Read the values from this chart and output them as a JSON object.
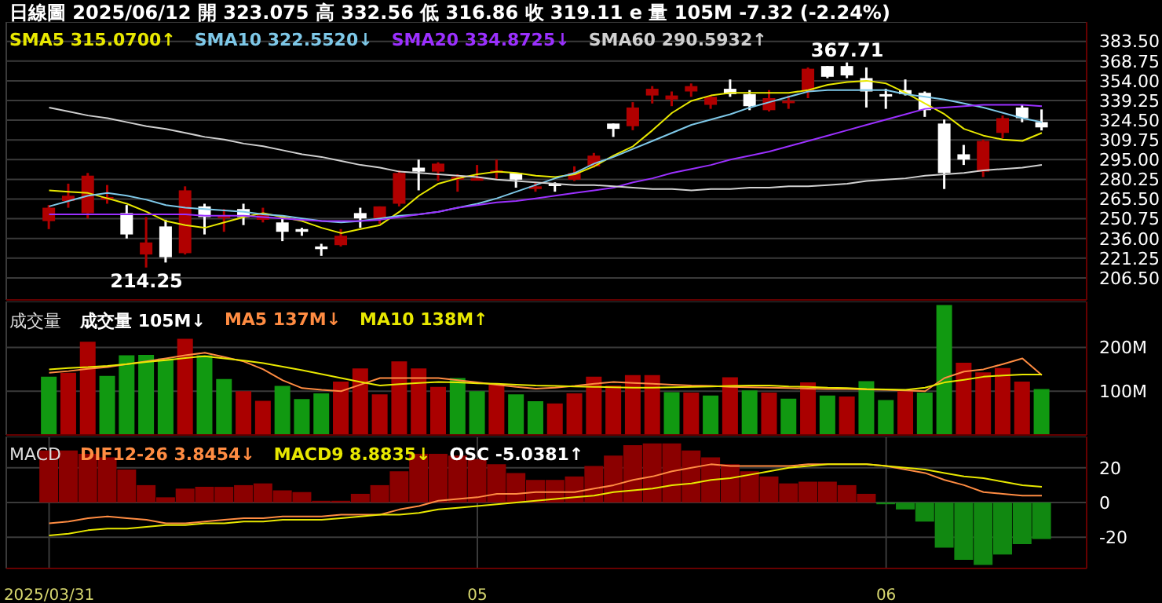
{
  "chart_data": [
    {
      "type": "candlestick",
      "title": "日線圖 2025/06/12 開 323.075 高 332.56 低 316.86 收 319.11 e 量 105M -7.32 (-2.24%)",
      "tick_labels": "y",
      "grid": true,
      "legend": "top left",
      "categories": [
        "2025/03/31",
        null,
        null,
        null,
        null,
        null,
        null,
        null,
        null,
        null,
        null,
        null,
        null,
        null,
        null,
        null,
        null,
        null,
        null,
        null,
        null,
        null,
        "05",
        null,
        null,
        null,
        null,
        null,
        null,
        null,
        null,
        null,
        null,
        null,
        null,
        null,
        null,
        null,
        null,
        null,
        null,
        null,
        null,
        "06",
        null,
        null,
        null,
        null,
        null,
        null,
        null,
        null
      ],
      "ylim": [
        190,
        398
      ],
      "yticks": [
        {
          "value": 206.5,
          "label": "206.50"
        },
        {
          "value": 221.25,
          "label": "221.25"
        },
        {
          "value": 236,
          "label": "236.00"
        },
        {
          "value": 250.75,
          "label": "250.75"
        },
        {
          "value": 265.5,
          "label": "265.50"
        },
        {
          "value": 280.25,
          "label": "280.25"
        },
        {
          "value": 295,
          "label": "295.00"
        },
        {
          "value": 309.75,
          "label": "309.75"
        },
        {
          "value": 324.5,
          "label": "324.50"
        },
        {
          "value": 339.25,
          "label": "339.25"
        },
        {
          "value": 354,
          "label": "354.00"
        },
        {
          "value": 368.75,
          "label": "368.75"
        },
        {
          "value": 383.5,
          "label": "383.50"
        }
      ],
      "ohlc": [
        [
          249,
          261,
          243,
          259
        ],
        [
          264,
          277,
          259,
          268
        ],
        [
          255,
          285,
          251,
          283
        ],
        [
          265,
          276,
          262,
          267
        ],
        [
          255,
          261,
          236,
          239
        ],
        [
          224,
          252,
          214.25,
          233
        ],
        [
          245,
          250,
          218,
          222
        ],
        [
          225,
          275,
          224,
          272
        ],
        [
          260,
          262,
          239,
          252
        ],
        [
          252,
          258,
          241,
          253
        ],
        [
          258,
          262,
          246,
          252
        ],
        [
          250,
          259,
          248,
          254
        ],
        [
          248,
          252,
          234,
          241
        ],
        [
          243,
          244,
          238,
          241
        ],
        [
          230,
          232,
          223,
          228
        ],
        [
          231,
          243,
          230,
          238
        ],
        [
          255,
          259,
          244,
          251
        ],
        [
          251,
          260,
          247,
          260
        ],
        [
          262,
          287,
          260,
          285
        ],
        [
          289,
          295,
          272,
          286
        ],
        [
          286,
          293,
          279,
          292
        ],
        [
          280,
          284,
          271,
          282
        ],
        [
          280,
          291,
          280,
          281
        ],
        [
          285,
          295,
          280,
          287
        ],
        [
          285,
          285,
          274,
          280
        ],
        [
          273,
          278,
          271,
          275
        ],
        [
          277,
          278,
          271,
          276
        ],
        [
          280,
          290,
          279,
          285
        ],
        [
          290,
          300,
          289,
          298
        ],
        [
          322,
          322,
          312,
          318
        ],
        [
          320,
          338,
          317,
          334
        ],
        [
          343,
          350,
          337,
          348
        ],
        [
          340,
          346,
          335,
          343
        ],
        [
          346,
          352,
          342,
          350
        ],
        [
          336,
          343,
          333,
          342
        ],
        [
          348,
          355,
          342,
          344
        ],
        [
          344,
          347,
          332,
          335
        ],
        [
          332,
          347,
          331,
          341
        ],
        [
          338,
          343,
          333,
          339
        ],
        [
          346,
          364,
          341,
          363
        ],
        [
          365,
          365,
          356,
          357
        ],
        [
          365,
          367.71,
          356,
          358
        ],
        [
          356,
          364,
          334,
          346
        ],
        [
          344,
          348,
          333,
          343
        ],
        [
          347,
          355,
          343,
          344
        ],
        [
          345,
          346,
          327,
          332
        ],
        [
          322,
          325,
          273,
          285
        ],
        [
          299,
          306,
          291,
          295
        ],
        [
          286,
          310,
          282,
          309
        ],
        [
          315,
          328,
          311,
          326
        ],
        [
          334,
          336,
          323,
          326
        ],
        [
          323.075,
          332.56,
          316.86,
          319.11
        ]
      ],
      "colors": [
        "#b00000",
        "#b00000",
        "#b00000",
        "#b00000",
        "#ffffff",
        "#b00000",
        "#ffffff",
        "#b00000",
        "#ffffff",
        "#b00000",
        "#ffffff",
        "#b00000",
        "#ffffff",
        "#ffffff",
        "#ffffff",
        "#b00000",
        "#ffffff",
        "#b00000",
        "#b00000",
        "#ffffff",
        "#b00000",
        "#b00000",
        "#b00000",
        "#b00000",
        "#ffffff",
        "#b00000",
        "#ffffff",
        "#b00000",
        "#b00000",
        "#ffffff",
        "#b00000",
        "#b00000",
        "#b00000",
        "#b00000",
        "#b00000",
        "#ffffff",
        "#ffffff",
        "#b00000",
        "#b00000",
        "#b00000",
        "#ffffff",
        "#ffffff",
        "#ffffff",
        "#ffffff",
        "#ffffff",
        "#ffffff",
        "#ffffff",
        "#ffffff",
        "#b00000",
        "#b00000",
        "#ffffff",
        "#ffffff"
      ],
      "annotations": [
        {
          "text": "367.71",
          "y": 367.71
        },
        {
          "text": "214.25",
          "y": 214.25
        }
      ],
      "series": [
        {
          "name": "SMA5 315.0700↑",
          "type": "line",
          "color": "#e8e800",
          "values": [
            272,
            271,
            270,
            266,
            262,
            256,
            249,
            246,
            244,
            248,
            252,
            255,
            252,
            249,
            244,
            240,
            243,
            246,
            256,
            268,
            277,
            281,
            284,
            286,
            285,
            283,
            282,
            284,
            290,
            298,
            305,
            317,
            330,
            339,
            343,
            345,
            345,
            345,
            345,
            347,
            351,
            353,
            354,
            352,
            345,
            337,
            329,
            318,
            313,
            310,
            309,
            315
          ]
        },
        {
          "name": "SMA10 322.5520↓",
          "type": "line",
          "color": "#7ec8e8",
          "values": [
            260,
            264,
            268,
            270,
            268,
            265,
            261,
            259,
            258,
            257,
            256,
            254,
            253,
            251,
            249,
            248,
            249,
            251,
            253,
            254,
            256,
            259,
            262,
            266,
            271,
            276,
            281,
            285,
            292,
            297,
            303,
            309,
            315,
            321,
            325,
            329,
            334,
            338,
            342,
            346,
            347,
            347,
            347,
            347,
            344,
            342,
            340,
            337,
            334,
            330,
            326,
            323
          ]
        },
        {
          "name": "SMA20 334.8725↓",
          "type": "line",
          "color": "#9b30ff",
          "values": [
            254,
            254,
            254,
            254,
            254,
            254,
            254,
            254,
            253,
            253,
            253,
            252,
            251,
            250,
            249,
            249,
            249,
            250,
            252,
            254,
            256,
            259,
            261,
            263,
            264,
            266,
            268,
            270,
            272,
            274,
            278,
            281,
            285,
            288,
            291,
            295,
            298,
            301,
            305,
            309,
            313,
            317,
            321,
            325,
            329,
            333,
            334,
            335,
            336,
            336,
            336,
            335
          ]
        },
        {
          "name": "SMA60 290.5932↑",
          "type": "line",
          "color": "#d0d0d0",
          "values": [
            334,
            331,
            328,
            326,
            323,
            320,
            318,
            315,
            312,
            310,
            307,
            305,
            302,
            299,
            297,
            294,
            291,
            289,
            286,
            285,
            284,
            283,
            282,
            280,
            279,
            278,
            277,
            276,
            276,
            275,
            274,
            273,
            273,
            272,
            273,
            273,
            274,
            274,
            275,
            275,
            276,
            277,
            279,
            280,
            281,
            283,
            284,
            285,
            287,
            288,
            289,
            291
          ]
        }
      ]
    },
    {
      "type": "bar",
      "title": "成交量",
      "tick_labels": "y",
      "grid": true,
      "legend": "top left",
      "categories": [
        "2025/03/31",
        null,
        null,
        null,
        null,
        null,
        null,
        null,
        null,
        null,
        null,
        null,
        null,
        null,
        null,
        null,
        null,
        null,
        null,
        null,
        null,
        null,
        "05",
        null,
        null,
        null,
        null,
        null,
        null,
        null,
        null,
        null,
        null,
        null,
        null,
        null,
        null,
        null,
        null,
        null,
        null,
        null,
        null,
        "06",
        null,
        null,
        null,
        null,
        null,
        null,
        null,
        null
      ],
      "ylim": [
        0,
        305
      ],
      "yticks": [
        {
          "value": 100,
          "label": "100M"
        },
        {
          "value": 200,
          "label": "200M"
        }
      ],
      "series": [
        {
          "name": "成交量 105M↓",
          "type": "bar",
          "values": [
            133,
            142,
            213,
            135,
            182,
            183,
            175,
            220,
            182,
            128,
            100,
            78,
            112,
            82,
            95,
            122,
            152,
            93,
            168,
            152,
            110,
            130,
            100,
            115,
            93,
            77,
            72,
            95,
            133,
            113,
            137,
            137,
            98,
            97,
            90,
            132,
            102,
            97,
            83,
            120,
            90,
            88,
            123,
            80,
            100,
            97,
            297,
            165,
            143,
            153,
            122,
            105
          ],
          "colors": [
            "#119911",
            "#aa0000",
            "#aa0000",
            "#119911",
            "#119911",
            "#119911",
            "#119911",
            "#aa0000",
            "#119911",
            "#119911",
            "#aa0000",
            "#aa0000",
            "#119911",
            "#119911",
            "#119911",
            "#aa0000",
            "#aa0000",
            "#aa0000",
            "#aa0000",
            "#aa0000",
            "#aa0000",
            "#119911",
            "#119911",
            "#aa0000",
            "#119911",
            "#119911",
            "#aa0000",
            "#aa0000",
            "#aa0000",
            "#aa0000",
            "#aa0000",
            "#aa0000",
            "#119911",
            "#aa0000",
            "#119911",
            "#aa0000",
            "#119911",
            "#aa0000",
            "#119911",
            "#aa0000",
            "#119911",
            "#aa0000",
            "#119911",
            "#119911",
            "#aa0000",
            "#119911",
            "#119911",
            "#aa0000",
            "#aa0000",
            "#aa0000",
            "#aa0000",
            "#119911"
          ]
        },
        {
          "name": "MA5 137M↓",
          "type": "line",
          "color": "#ff8c42",
          "values": [
            142,
            146,
            151,
            155,
            162,
            168,
            175,
            182,
            188,
            178,
            168,
            150,
            125,
            107,
            103,
            100,
            115,
            130,
            130,
            130,
            130,
            125,
            120,
            115,
            110,
            106,
            108,
            112,
            117,
            121,
            119,
            117,
            115,
            113,
            112,
            110,
            109,
            108,
            107,
            106,
            105,
            105,
            104,
            103,
            102,
            100,
            130,
            145,
            150,
            162,
            175,
            137
          ]
        },
        {
          "name": "MA10 138M↑",
          "type": "line",
          "color": "#e8e800",
          "values": [
            150,
            153,
            155,
            158,
            162,
            167,
            171,
            176,
            180,
            175,
            170,
            164,
            156,
            148,
            139,
            130,
            121,
            113,
            116,
            119,
            121,
            120,
            118,
            117,
            115,
            113,
            112,
            111,
            110,
            109,
            108,
            108,
            109,
            110,
            111,
            112,
            113,
            113,
            111,
            110,
            108,
            107,
            105,
            104,
            103,
            108,
            120,
            126,
            133,
            136,
            138,
            138
          ]
        }
      ]
    },
    {
      "type": "bar",
      "title": "MACD",
      "grid": true,
      "legend": "top left",
      "categories": [
        "2025/03/31",
        null,
        null,
        null,
        null,
        null,
        null,
        null,
        null,
        null,
        null,
        null,
        null,
        null,
        null,
        null,
        null,
        null,
        null,
        null,
        null,
        null,
        "05",
        null,
        null,
        null,
        null,
        null,
        null,
        null,
        null,
        null,
        null,
        null,
        null,
        null,
        null,
        null,
        null,
        null,
        null,
        null,
        null,
        "06",
        null,
        null,
        null,
        null,
        null,
        null,
        null,
        null
      ],
      "ylim": [
        -38,
        38
      ],
      "yticks": [
        -20,
        0,
        20
      ],
      "series": [
        {
          "name": "DIF12-26 3.8454↓",
          "type": "line",
          "color": "#ff8c42",
          "values": [
            -12,
            -11,
            -9,
            -8,
            -9,
            -10,
            -12,
            -12,
            -11,
            -10,
            -9,
            -9,
            -8,
            -8,
            -8,
            -7,
            -7,
            -7,
            -4,
            -2,
            1,
            2,
            3,
            5,
            5,
            6,
            6,
            6,
            8,
            10,
            13,
            15,
            18,
            20,
            22,
            21,
            21,
            21,
            21,
            22,
            22,
            22,
            22,
            21,
            19,
            17,
            13,
            10,
            6,
            5,
            4,
            4
          ]
        },
        {
          "name": "MACD9 8.8835↓",
          "type": "line",
          "color": "#e8e800",
          "values": [
            -19,
            -18,
            -16,
            -15,
            -15,
            -14,
            -13,
            -13,
            -12,
            -12,
            -11,
            -11,
            -10,
            -10,
            -10,
            -9,
            -8,
            -7,
            -7,
            -6,
            -4,
            -3,
            -2,
            -1,
            0,
            1,
            2,
            3,
            4,
            6,
            7,
            8,
            10,
            11,
            13,
            14,
            16,
            18,
            20,
            21,
            22,
            22,
            22,
            21,
            20,
            19,
            17,
            15,
            14,
            12,
            10,
            9
          ]
        },
        {
          "name": "OSC -5.0381↑",
          "type": "bar",
          "values": [
            30,
            30,
            28,
            26,
            19,
            10,
            3,
            8,
            9,
            9,
            10,
            11,
            7,
            6,
            1,
            1,
            5,
            10,
            18,
            28,
            28,
            27,
            25,
            22,
            17,
            13,
            13,
            15,
            21,
            27,
            33,
            34,
            34,
            30,
            26,
            22,
            18,
            15,
            11,
            12,
            12,
            10,
            5,
            -1,
            -4,
            -11,
            -26,
            -33,
            -36,
            -30,
            -24,
            -21
          ],
          "colors": [
            "#8b0000",
            "#8b0000",
            "#8b0000",
            "#8b0000",
            "#8b0000",
            "#8b0000",
            "#8b0000",
            "#8b0000",
            "#8b0000",
            "#8b0000",
            "#8b0000",
            "#8b0000",
            "#8b0000",
            "#8b0000",
            "#8b0000",
            "#8b0000",
            "#8b0000",
            "#8b0000",
            "#8b0000",
            "#8b0000",
            "#8b0000",
            "#8b0000",
            "#8b0000",
            "#8b0000",
            "#8b0000",
            "#8b0000",
            "#8b0000",
            "#8b0000",
            "#8b0000",
            "#8b0000",
            "#8b0000",
            "#8b0000",
            "#8b0000",
            "#8b0000",
            "#8b0000",
            "#8b0000",
            "#8b0000",
            "#8b0000",
            "#8b0000",
            "#8b0000",
            "#8b0000",
            "#8b0000",
            "#8b0000",
            "#118811",
            "#118811",
            "#118811",
            "#118811",
            "#118811",
            "#118811",
            "#118811",
            "#118811",
            "#118811"
          ]
        }
      ]
    }
  ]
}
